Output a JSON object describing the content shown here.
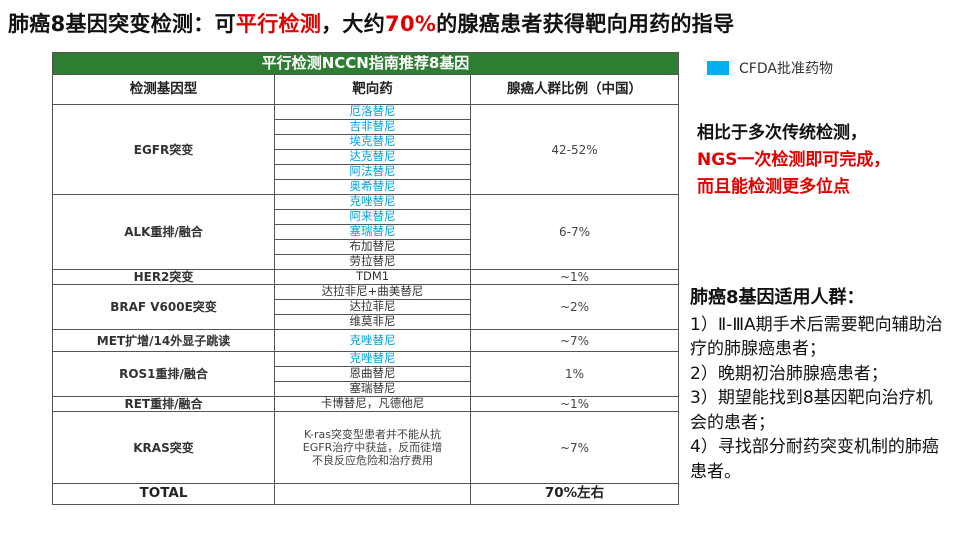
{
  "title": {
    "part1": "肺癌8基因突变检测：可",
    "part2": "平行检测",
    "part3": "，大约",
    "part4": "70%",
    "part5": "的腺癌患者获得靶向用药的指导"
  },
  "legend": {
    "label": "CFDA批准药物",
    "color": "#00b0f0"
  },
  "table": {
    "banner": "平行检测NCCN指南推荐8基因",
    "headers": [
      "检测基因型",
      "靶向药",
      "腺癌人群比例（中国）"
    ],
    "rows": {
      "egfr": {
        "gene": "EGFR突变",
        "pct": "42-52%",
        "drugs": [
          "厄洛替尼",
          "吉非替尼",
          "埃克替尼",
          "达克替尼",
          "阿法替尼",
          "奥希替尼"
        ]
      },
      "alk": {
        "gene": "ALK重排/融合",
        "pct": "6-7%",
        "drugs": [
          "克唑替尼",
          "阿来替尼",
          "塞瑞替尼",
          "布加替尼",
          "劳拉替尼"
        ]
      },
      "her2": {
        "gene": "HER2突变",
        "pct": "~1%",
        "drugs": [
          "TDM1"
        ]
      },
      "braf": {
        "gene": "BRAF V600E突变",
        "pct": "~2%",
        "drugs": [
          "达拉非尼+曲美替尼",
          "达拉菲尼",
          "维莫非尼"
        ]
      },
      "met": {
        "gene": "MET扩增/14外显子跳读",
        "pct": "~7%",
        "drugs": [
          "克唑替尼"
        ]
      },
      "ros1": {
        "gene": "ROS1重排/融合",
        "pct": "1%",
        "drugs": [
          "克唑替尼",
          "恩曲替尼",
          "塞瑞替尼"
        ]
      },
      "ret": {
        "gene": "RET重排/融合",
        "pct": "~1%",
        "drugs": [
          "卡博替尼，凡德他尼"
        ]
      },
      "kras": {
        "gene": "KRAS突变",
        "pct": "~7%",
        "note": "K-ras突变型患者并不能从抗EGFR治疗中获益，反而徒增不良反应危险和治疗费用"
      }
    },
    "total": {
      "label": "TOTAL",
      "value": "70%左右"
    }
  },
  "callout": {
    "line1": "相比于多次传统检测，",
    "line2": "NGS一次检测即可完成，",
    "line3": "而且能检测更多位点"
  },
  "applicable": {
    "title": "肺癌8基因适用人群：",
    "items": [
      "1）Ⅱ-ⅢA期手术后需要靶向辅助治疗的肺腺癌患者；",
      "2）晚期初治肺腺癌患者；",
      "3）期望能找到8基因靶向治疗机会的患者；",
      "4）寻找部分耐药突变机制的肺癌患者。"
    ]
  }
}
